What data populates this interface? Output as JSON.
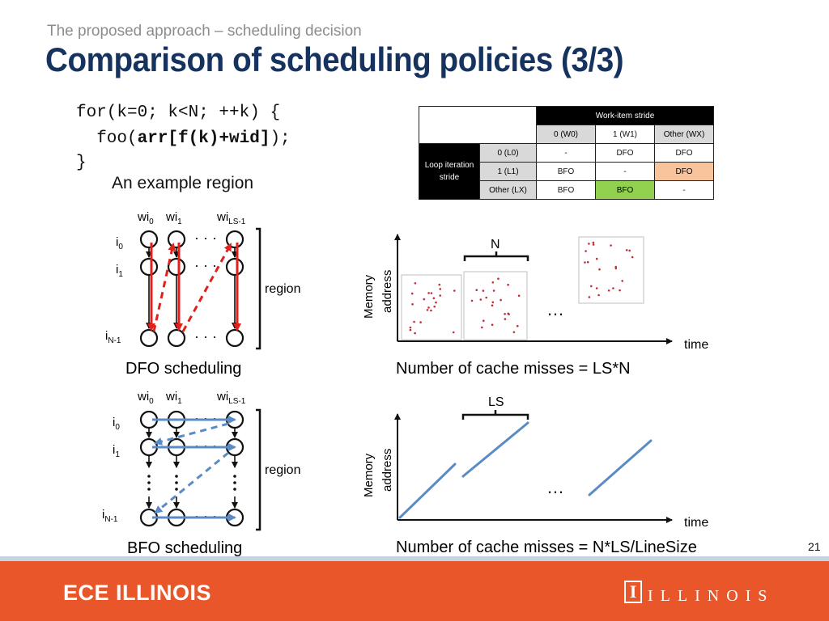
{
  "header": {
    "subtitle": "The proposed approach – scheduling decision",
    "title": "Comparison of scheduling policies (3/3)"
  },
  "code": {
    "line1": "for(k=0; k<N; ++k) {",
    "line2_pre": "  foo(",
    "line2_bold": "arr[f(k)+wid]",
    "line2_post": ");",
    "line3": "}",
    "caption": "An example region"
  },
  "stride_table": {
    "col_group": "Work-item stride",
    "row_group": "Loop iteration stride",
    "columns": [
      "0 (W0)",
      "1 (W1)",
      "Other (WX)"
    ],
    "rows": [
      {
        "label": "0 (L0)",
        "cells": [
          "-",
          "DFO",
          "DFO"
        ]
      },
      {
        "label": "1 (L1)",
        "cells": [
          "BFO",
          "-",
          "DFO"
        ]
      },
      {
        "label": "Other (LX)",
        "cells": [
          "BFO",
          "BFO",
          "-"
        ]
      }
    ],
    "colors": {
      "highlight_orange": "#f9c49b",
      "highlight_green": "#92d050"
    }
  },
  "dfo": {
    "wi0": "wi",
    "wi0_sub": "0",
    "wi1": "wi",
    "wi1_sub": "1",
    "wils": "wi",
    "wils_sub": "LS-1",
    "i0": "i",
    "i0_sub": "0",
    "i1": "i",
    "i1_sub": "1",
    "in": "i",
    "in_sub": "N-1",
    "region": "region",
    "caption": "DFO scheduling",
    "arrow_color": "#e0201c"
  },
  "bfo": {
    "wi0": "wi",
    "wi0_sub": "0",
    "wi1": "wi",
    "wi1_sub": "1",
    "wils": "wi",
    "wils_sub": "LS-1",
    "i0": "i",
    "i0_sub": "0",
    "i1": "i",
    "i1_sub": "1",
    "in": "i",
    "in_sub": "N-1",
    "region": "region",
    "caption": "BFO scheduling",
    "arrow_color": "#5a8bc4"
  },
  "plot_top": {
    "y_label_1": "Memory",
    "y_label_2": "address",
    "x_label": "time",
    "brace_label": "N",
    "ellipsis": "…",
    "result": "Number of cache misses = LS*N",
    "dot_color": "#c0303a"
  },
  "plot_bottom": {
    "y_label_1": "Memory",
    "y_label_2": "address",
    "x_label": "time",
    "brace_label": "LS",
    "ellipsis": "…",
    "result": "Number of cache misses = N*LS/LineSize",
    "line_color": "#5a8bc4"
  },
  "footer": {
    "left": "ECE ILLINOIS",
    "right_mark": "I",
    "right": "ILLINOIS",
    "page": "21"
  }
}
